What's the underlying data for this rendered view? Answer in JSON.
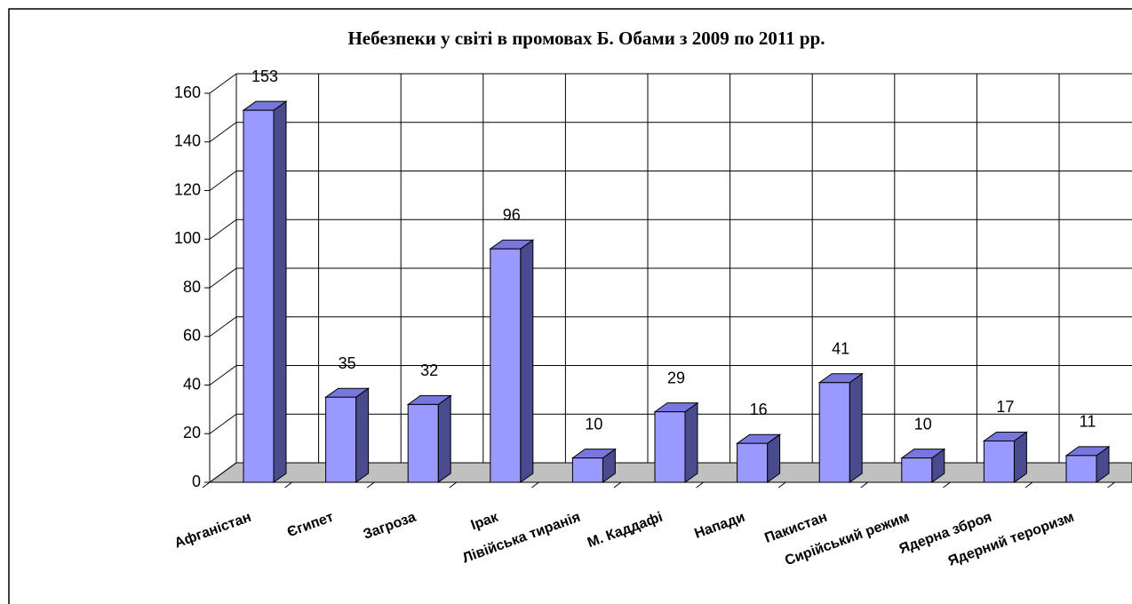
{
  "chart_data": {
    "type": "bar3d",
    "title": "Небезпеки  у світі в промовах Б. Обами з 2009 по 2011 рр.",
    "categories": [
      "Афганістан",
      "Єгипет",
      "Загроза",
      "Ірак",
      "Лівійська тиранія",
      "М. Каддафі",
      "Напади",
      "Пакистан",
      "Сирійський режим",
      "Ядерна зброя",
      "Ядерний тероризм"
    ],
    "values": [
      153,
      35,
      32,
      96,
      10,
      29,
      16,
      41,
      10,
      17,
      11
    ],
    "color": "#9999ff",
    "ylim": [
      0,
      160
    ],
    "yticks": [
      0,
      20,
      40,
      60,
      80,
      100,
      120,
      140,
      160
    ],
    "grid": true
  }
}
